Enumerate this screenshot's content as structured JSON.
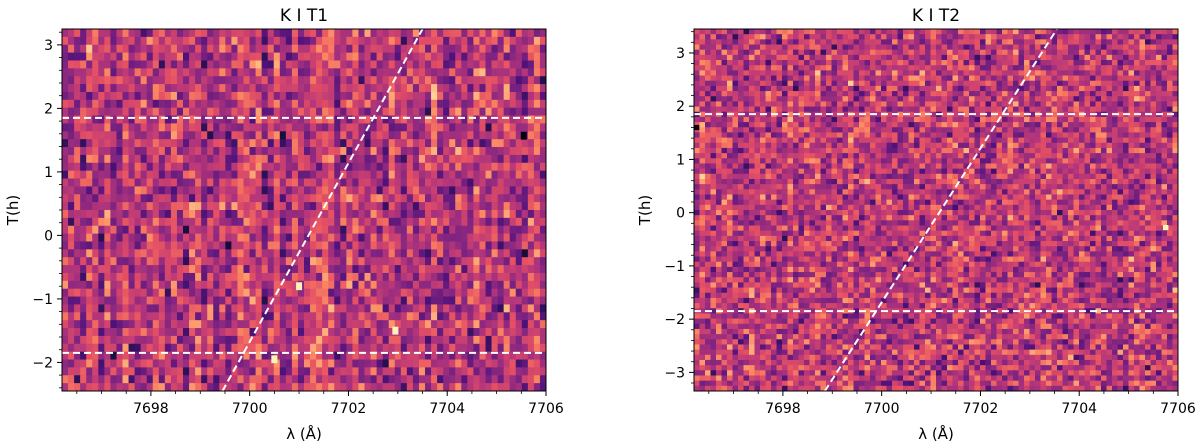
{
  "chart_data": [
    {
      "type": "heatmap",
      "title": "K I T1",
      "xlabel": "λ (Å)",
      "ylabel": "T(h)",
      "xlim": [
        7696.2,
        7706.0
      ],
      "ylim": [
        -2.45,
        3.25
      ],
      "xticks": [
        7698,
        7700,
        7702,
        7704,
        7706
      ],
      "xtick_labels": [
        "7698",
        "7700",
        "7702",
        "7704",
        "7706"
      ],
      "yticks": [
        -2,
        -1,
        0,
        1,
        2,
        3
      ],
      "ytick_labels": [
        "−2",
        "−1",
        "0",
        "1",
        "2",
        "3"
      ],
      "colormap": "magma",
      "grid": false,
      "hlines": [
        1.85,
        -1.85
      ],
      "diagonal_line": {
        "x": [
          7699.45,
          7703.5
        ],
        "y": [
          -2.45,
          3.25
        ]
      },
      "bright_pixels": [
        {
          "x": 7702.95,
          "y": -1.5
        },
        {
          "x": 7701.0,
          "y": -0.8
        },
        {
          "x": 7700.5,
          "y": -1.95
        }
      ],
      "dark_pixels": [
        {
          "x": 7705.55,
          "y": 1.57
        }
      ]
    },
    {
      "type": "heatmap",
      "title": "K I T2",
      "xlabel": "λ (Å)",
      "ylabel": "T(h)",
      "xlim": [
        7696.2,
        7706.0
      ],
      "ylim": [
        -3.35,
        3.45
      ],
      "xticks": [
        7698,
        7700,
        7702,
        7704,
        7706
      ],
      "xtick_labels": [
        "7698",
        "7700",
        "7702",
        "7704",
        "7706"
      ],
      "yticks": [
        -3,
        -2,
        -1,
        0,
        1,
        2,
        3
      ],
      "ytick_labels": [
        "−3",
        "−2",
        "−1",
        "0",
        "1",
        "2",
        "3"
      ],
      "colormap": "magma",
      "grid": false,
      "hlines": [
        1.85,
        -1.85
      ],
      "diagonal_line": {
        "x": [
          7698.85,
          7703.55
        ],
        "y": [
          -3.35,
          3.45
        ]
      },
      "bright_pixels": [
        {
          "x": 7705.75,
          "y": -0.28
        }
      ],
      "dark_pixels": [
        {
          "x": 7696.25,
          "y": 1.6
        }
      ]
    }
  ]
}
